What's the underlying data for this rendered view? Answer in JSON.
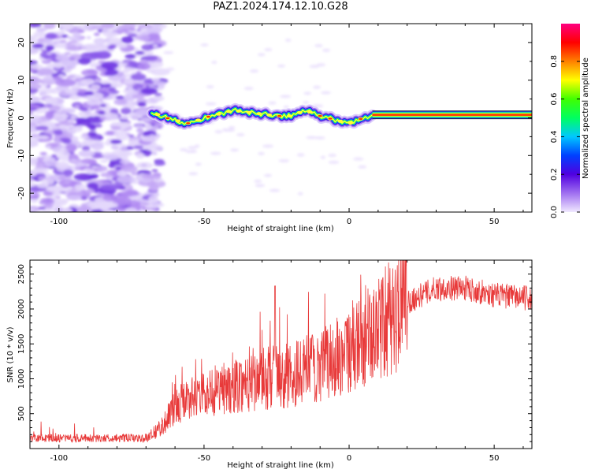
{
  "title": "PAZ1.2024.174.12.10.G28",
  "chart_data": [
    {
      "type": "heatmap",
      "xlabel": "Height of straight line (km)",
      "ylabel": "Frequency (Hz)",
      "xlim": [
        -110,
        63
      ],
      "ylim": [
        -25,
        25
      ],
      "xticks": [
        -100,
        -50,
        0,
        50
      ],
      "xtick_labels": [
        "-100",
        "-50",
        "0",
        "50"
      ],
      "yticks": [
        -20,
        -10,
        0,
        10,
        20
      ],
      "ytick_labels": [
        "-20",
        "-10",
        "0",
        "10",
        "20"
      ],
      "grid": false,
      "colorbar": {
        "label": "Normalized spectral amplitude",
        "range": [
          0,
          1
        ],
        "ticks": [
          0.0,
          0.2,
          0.4,
          0.6,
          0.8
        ],
        "tick_labels": [
          "0.0",
          "0.2",
          "0.4",
          "0.6",
          "0.8"
        ],
        "colormap": [
          "#f0e8ff",
          "#a070f0",
          "#5000e0",
          "#0040ff",
          "#00c8ff",
          "#00ff60",
          "#40ff00",
          "#ffff00",
          "#ff8000",
          "#ff0000",
          "#ff0080"
        ]
      },
      "ridge": {
        "x": [
          -68,
          -63,
          -58,
          -55,
          -50,
          -45,
          -40,
          -35,
          -30,
          -25,
          -20,
          -15,
          -10,
          -5,
          0,
          5,
          8,
          20,
          40,
          63
        ],
        "frequency": [
          1.5,
          0,
          -1,
          -1.5,
          0,
          1,
          2,
          1.5,
          1,
          0.5,
          0.5,
          2,
          0.5,
          -0.5,
          -1.5,
          0,
          0.8,
          0.8,
          0.8,
          0.8
        ]
      }
    },
    {
      "type": "line",
      "xlabel": "Height of straight line (km)",
      "ylabel": "SNR (10 * v/v)",
      "xlim": [
        -110,
        63
      ],
      "ylim": [
        0,
        2700
      ],
      "xticks": [
        -100,
        -50,
        0,
        50
      ],
      "xtick_labels": [
        "-100",
        "-50",
        "0",
        "50"
      ],
      "yticks": [
        500,
        1000,
        1500,
        2000,
        2500
      ],
      "ytick_labels": [
        "500",
        "1000",
        "1500",
        "2000",
        "2500"
      ],
      "grid": false,
      "line_color": "#e83a3a",
      "envelope": {
        "x": [
          -110,
          -70,
          -65,
          -60,
          -55,
          -50,
          -40,
          -30,
          -20,
          -10,
          0,
          10,
          20,
          30,
          40,
          50,
          63
        ],
        "snr": [
          150,
          150,
          300,
          600,
          700,
          800,
          900,
          1000,
          1050,
          1200,
          1400,
          1700,
          2100,
          2300,
          2300,
          2200,
          2150
        ]
      }
    }
  ]
}
